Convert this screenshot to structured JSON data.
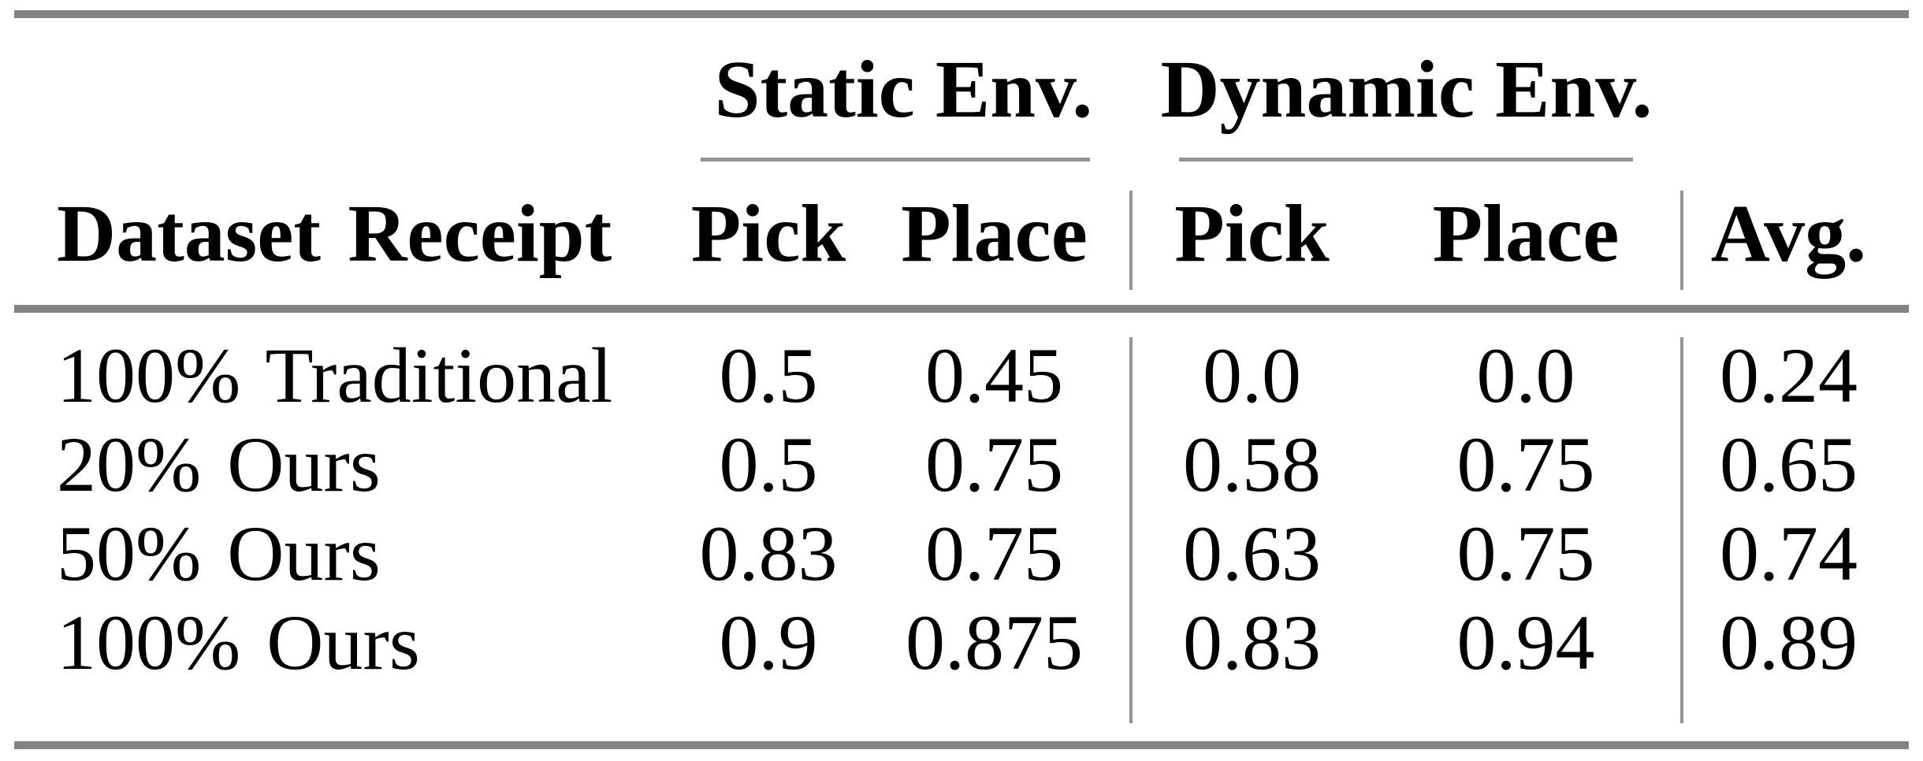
{
  "page": {
    "background": "#ffffff"
  },
  "table": {
    "col_groups": [
      {
        "label": "Static Env."
      },
      {
        "label": "Dynamic Env."
      }
    ],
    "headers": {
      "dataset": "Dataset Receipt",
      "static_pick": "Pick",
      "static_place": "Place",
      "dynamic_pick": "Pick",
      "dynamic_place": "Place",
      "avg": "Avg."
    },
    "rows": [
      {
        "label": "100% Traditional",
        "static_pick": "0.5",
        "static_place": "0.45",
        "dynamic_pick": "0.0",
        "dynamic_place": "0.0",
        "avg": "0.24"
      },
      {
        "label": "20% Ours",
        "static_pick": "0.5",
        "static_place": "0.75",
        "dynamic_pick": "0.58",
        "dynamic_place": "0.75",
        "avg": "0.65"
      },
      {
        "label": "50% Ours",
        "static_pick": "0.83",
        "static_place": "0.75",
        "dynamic_pick": "0.63",
        "dynamic_place": "0.75",
        "avg": "0.74"
      },
      {
        "label": "100% Ours",
        "static_pick": "0.9",
        "static_place": "0.875",
        "dynamic_pick": "0.83",
        "dynamic_place": "0.94",
        "avg": "0.89"
      }
    ],
    "style": {
      "thick_rule_color": "#828282",
      "thin_rule_color": "#959595",
      "text_color": "#000000"
    }
  },
  "chart_data": {
    "type": "table",
    "columns": [
      "Dataset Receipt",
      "Static Env. Pick",
      "Static Env. Place",
      "Dynamic Env. Pick",
      "Dynamic Env. Place",
      "Avg."
    ],
    "rows": [
      [
        "100% Traditional",
        0.5,
        0.45,
        0.0,
        0.0,
        0.24
      ],
      [
        "20% Ours",
        0.5,
        0.75,
        0.58,
        0.75,
        0.65
      ],
      [
        "50% Ours",
        0.83,
        0.75,
        0.63,
        0.75,
        0.74
      ],
      [
        "100% Ours",
        0.9,
        0.875,
        0.83,
        0.94,
        0.89
      ]
    ]
  }
}
